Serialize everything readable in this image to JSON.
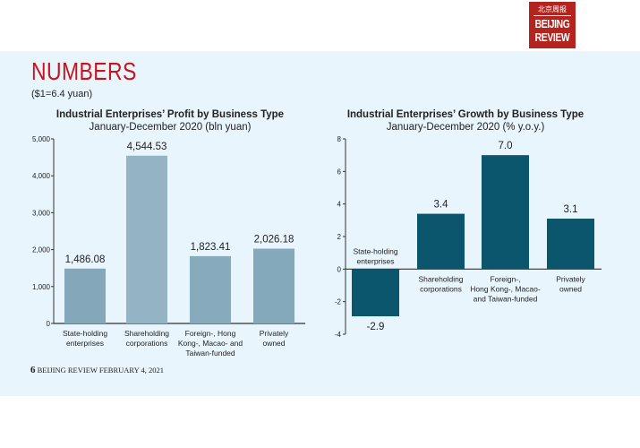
{
  "logo": {
    "cn": "北京周报",
    "line1": "BEIJING",
    "line2": "REVIEW"
  },
  "header": {
    "title": "NUMBERS",
    "rate": "($1=6.4 yuan)"
  },
  "footer": {
    "page": "6",
    "text": "BEIJING REVIEW FEBRUARY 4, 2021"
  },
  "chart_data": [
    {
      "type": "bar",
      "title": "Industrial Enterprises’ Profit by Business Type",
      "subtitle": "January-December 2020 (bln yuan)",
      "categories": [
        [
          "State-holding",
          "enterprises"
        ],
        [
          "Shareholding",
          "corporations"
        ],
        [
          "Foreign-, Hong",
          "Kong-, Macao- and",
          "Taiwan-funded"
        ],
        [
          "Privately",
          "owned"
        ]
      ],
      "values": [
        1486.08,
        4544.53,
        1823.41,
        2026.18
      ],
      "labels": [
        "1,486.08",
        "4,544.53",
        "1,823.41",
        "2,026.18"
      ],
      "ylim": [
        0,
        5000
      ],
      "yticks": [
        "0",
        "1,000",
        "2,000",
        "3,000",
        "4,000",
        "5,000"
      ],
      "colors": [
        "#84a8ba",
        "#94b4c5",
        "#87abbd",
        "#83a9bb"
      ]
    },
    {
      "type": "bar",
      "title": "Industrial Enterprises’ Growth by Business Type",
      "subtitle": "January-December 2020 (% y.o.y.)",
      "categories": [
        [
          "State-holding",
          "enterprises"
        ],
        [
          "Shareholding",
          "corporations"
        ],
        [
          "Foreign-,",
          "Hong Kong-, Macao-",
          "and Taiwan-funded"
        ],
        [
          "Privately",
          "owned"
        ]
      ],
      "values": [
        -2.9,
        3.4,
        7.0,
        3.1
      ],
      "labels": [
        "-2.9",
        "3.4",
        "7.0",
        "3.1"
      ],
      "ylim": [
        -4,
        8
      ],
      "yticks": [
        "-4",
        "-2",
        "0",
        "2",
        "4",
        "6",
        "8"
      ],
      "color": "#0b566c"
    }
  ]
}
